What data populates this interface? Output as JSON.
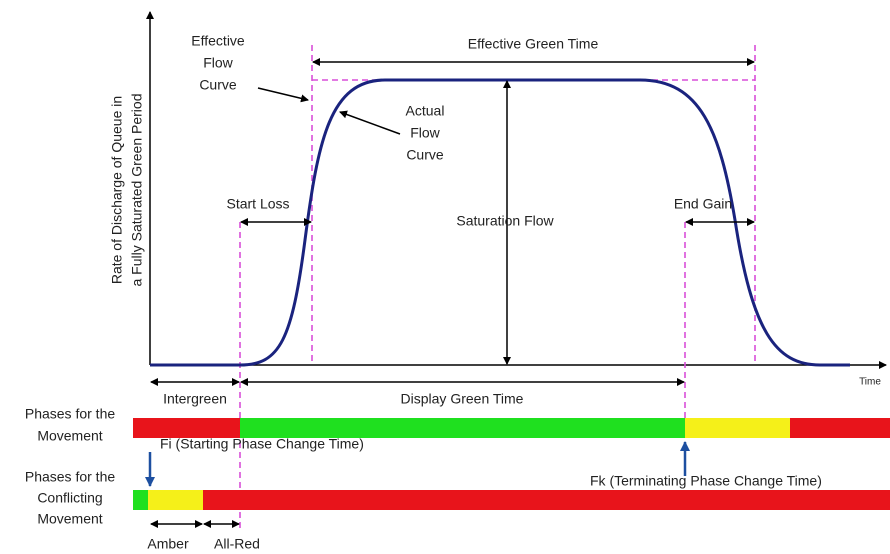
{
  "y_axis_label": [
    "Rate of Discharge of Queue in",
    "a Fully Saturated Green Period"
  ],
  "x_axis_label": "Time",
  "effective_flow_curve": [
    "Effective",
    "Flow",
    "Curve"
  ],
  "actual_flow_curve": [
    "Actual",
    "Flow",
    "Curve"
  ],
  "effective_green_time": "Effective Green Time",
  "start_loss": "Start Loss",
  "end_gain": "End Gain",
  "saturation_flow": "Saturation Flow",
  "intergreen": "Intergreen",
  "display_green_time": "Display Green Time",
  "phases_movement": [
    "Phases for the",
    "Movement"
  ],
  "phases_conflicting": [
    "Phases for the",
    "Conflicting",
    "Movement"
  ],
  "fi_label": "Fi (Starting Phase Change Time)",
  "fk_label": "Fk (Terminating Phase Change Time)",
  "amber": "Amber",
  "all_red": "All-Red"
}
